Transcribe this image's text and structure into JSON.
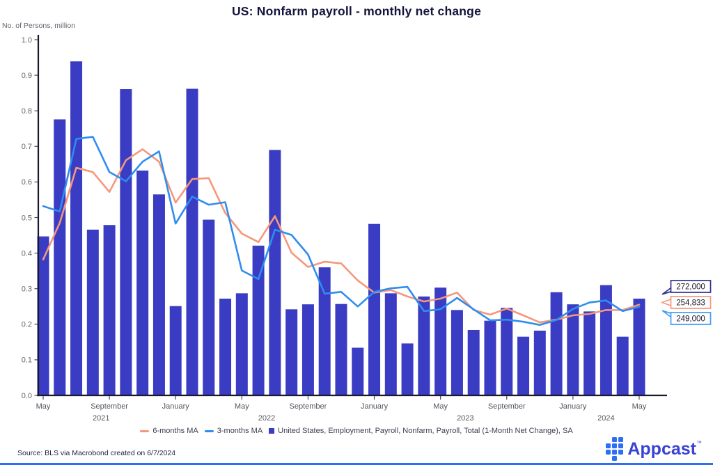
{
  "header": {
    "title": "US: Nonfarm payroll - monthly net change"
  },
  "chart_data": {
    "type": "bar",
    "title": "US: Nonfarm payroll - monthly net change",
    "ylabel": "No. of Persons, million",
    "xlabel": "",
    "ylim": [
      0.0,
      1.0
    ],
    "y_tick_step": 0.1,
    "grid": false,
    "legend_position": "bottom",
    "months": [
      "May",
      "June",
      "July",
      "August",
      "September",
      "October",
      "November",
      "December",
      "January",
      "February",
      "March",
      "April",
      "May",
      "June",
      "July",
      "August",
      "September",
      "October",
      "November",
      "December",
      "January",
      "February",
      "March",
      "April",
      "May",
      "June",
      "July",
      "August",
      "September",
      "October",
      "November",
      "December",
      "January",
      "February",
      "March",
      "April",
      "May"
    ],
    "years": [
      2021,
      2021,
      2021,
      2021,
      2021,
      2021,
      2021,
      2021,
      2022,
      2022,
      2022,
      2022,
      2022,
      2022,
      2022,
      2022,
      2022,
      2022,
      2022,
      2022,
      2023,
      2023,
      2023,
      2023,
      2023,
      2023,
      2023,
      2023,
      2023,
      2023,
      2023,
      2023,
      2024,
      2024,
      2024,
      2024,
      2024
    ],
    "x_tick_months": [
      "May",
      "September",
      "January"
    ],
    "series": [
      {
        "name": "United States, Employment, Payroll, Nonfarm, Payroll, Total (1-Month Net Change), SA",
        "type": "bar",
        "color": "#3a3cc3",
        "values": [
          0.447,
          0.776,
          0.939,
          0.466,
          0.479,
          0.861,
          0.632,
          0.565,
          0.251,
          0.862,
          0.494,
          0.272,
          0.287,
          0.421,
          0.69,
          0.242,
          0.256,
          0.36,
          0.257,
          0.134,
          0.482,
          0.287,
          0.146,
          0.278,
          0.303,
          0.24,
          0.184,
          0.21,
          0.246,
          0.165,
          0.182,
          0.29,
          0.256,
          0.236,
          0.31,
          0.165,
          0.272
        ]
      },
      {
        "name": "6-months MA",
        "type": "line",
        "color": "#f6977b",
        "values": [
          0.382,
          0.485,
          0.64,
          0.628,
          0.572,
          0.661,
          0.692,
          0.657,
          0.542,
          0.608,
          0.611,
          0.513,
          0.455,
          0.431,
          0.504,
          0.401,
          0.361,
          0.376,
          0.371,
          0.323,
          0.289,
          0.296,
          0.278,
          0.264,
          0.272,
          0.289,
          0.24,
          0.227,
          0.244,
          0.225,
          0.205,
          0.213,
          0.225,
          0.229,
          0.24,
          0.24,
          0.255
        ]
      },
      {
        "name": "3-months MA",
        "type": "line",
        "color": "#2f8def",
        "values": [
          0.532,
          0.517,
          0.721,
          0.727,
          0.628,
          0.602,
          0.657,
          0.686,
          0.483,
          0.559,
          0.536,
          0.543,
          0.351,
          0.327,
          0.466,
          0.451,
          0.396,
          0.286,
          0.291,
          0.25,
          0.291,
          0.301,
          0.305,
          0.237,
          0.242,
          0.274,
          0.242,
          0.211,
          0.213,
          0.207,
          0.198,
          0.212,
          0.243,
          0.261,
          0.267,
          0.237,
          0.249
        ]
      }
    ],
    "callouts": [
      {
        "label": "272,000",
        "series": 0,
        "border_color": "#2d2d8f"
      },
      {
        "label": "254,833",
        "series": 1,
        "border_color": "#f6977b"
      },
      {
        "label": "249,000",
        "series": 2,
        "border_color": "#3f9bf5"
      }
    ]
  },
  "legend": {
    "items": [
      {
        "label": "6-months MA",
        "swatch": "line",
        "color": "#f6977b"
      },
      {
        "label": "3-months MA",
        "swatch": "line",
        "color": "#2f8def"
      },
      {
        "label": "United States, Employment, Payroll, Nonfarm, Payroll, Total (1-Month Net Change), SA",
        "swatch": "square",
        "color": "#3a3cc3"
      }
    ]
  },
  "footer": {
    "source": "Source: BLS via Macrobond created on 6/7/2024"
  },
  "brand": {
    "name": "Appcast",
    "tm": "™"
  }
}
